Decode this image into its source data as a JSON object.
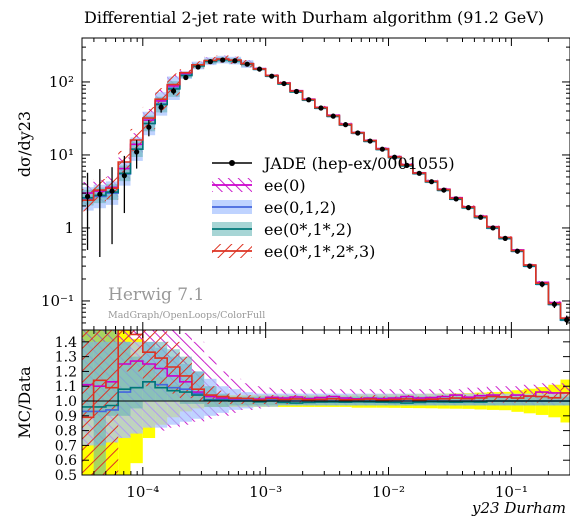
{
  "chart_data": [
    {
      "type": "line",
      "title": "Differential 2-jet rate with Durham algorithm (91.2 GeV)",
      "ylabel": "dσ/dy23",
      "xscale": "log",
      "yscale": "log",
      "xlim": [
        3.2e-05,
        0.3
      ],
      "ylim": [
        0.04,
        400
      ],
      "grid": false,
      "legend_position": "center-right",
      "x_tick_labels": [
        "10⁻⁴",
        "10⁻³",
        "10⁻²",
        "10⁻¹"
      ],
      "x_ticks": [
        0.0001,
        0.001,
        0.01,
        0.1
      ],
      "y_tick_labels": [
        "10⁻¹",
        "1",
        "10¹",
        "10²"
      ],
      "y_ticks": [
        0.1,
        1,
        10,
        100
      ],
      "watermark": {
        "title": "Herwig 7.1",
        "subtitle": "MadGraph/OpenLoops/ColorFull"
      },
      "bin_edges": [
        3.16e-05,
        3.98e-05,
        5.01e-05,
        6.31e-05,
        7.94e-05,
        0.0001,
        0.000126,
        0.000158,
        0.0002,
        0.000251,
        0.000316,
        0.000398,
        0.000501,
        0.000631,
        0.000794,
        0.001,
        0.00126,
        0.00158,
        0.002,
        0.00251,
        0.00316,
        0.00398,
        0.00501,
        0.00631,
        0.00794,
        0.01,
        0.0126,
        0.0158,
        0.02,
        0.0251,
        0.0316,
        0.0398,
        0.0501,
        0.0631,
        0.0794,
        0.1,
        0.126,
        0.158,
        0.2,
        0.251,
        0.316
      ],
      "data_x": [
        3.55e-05,
        4.47e-05,
        5.62e-05,
        7.08e-05,
        8.91e-05,
        0.000112,
        0.000141,
        0.000178,
        0.000224,
        0.000282,
        0.000355,
        0.000447,
        0.000562,
        0.000708,
        0.000891,
        0.00112,
        0.00141,
        0.00178,
        0.00224,
        0.00282,
        0.00355,
        0.00447,
        0.00562,
        0.00708,
        0.00891,
        0.0112,
        0.0141,
        0.0178,
        0.0224,
        0.0282,
        0.0355,
        0.0447,
        0.0562,
        0.0708,
        0.0891,
        0.112,
        0.141,
        0.178,
        0.224,
        0.282
      ],
      "series": [
        {
          "name": "JADE (hep-ex/0001055)",
          "color": "#000000",
          "style": "points",
          "values": [
            2.7,
            2.9,
            3.2,
            5.2,
            11,
            24,
            45,
            75,
            115,
            160,
            190,
            200,
            195,
            175,
            150,
            120,
            95,
            74,
            57,
            44,
            34,
            26,
            20,
            15.5,
            12,
            9.3,
            7.2,
            5.6,
            4.3,
            3.3,
            2.5,
            1.9,
            1.4,
            1.0,
            0.72,
            0.48,
            0.3,
            0.17,
            0.09,
            0.055
          ],
          "err_low": [
            2.2,
            2.5,
            2.6,
            3.6,
            4.5,
            6,
            7,
            8,
            8,
            8,
            8,
            8,
            8,
            7,
            6,
            5,
            4,
            3,
            2.4,
            1.9,
            1.5,
            1.2,
            0.9,
            0.7,
            0.55,
            0.43,
            0.34,
            0.27,
            0.21,
            0.17,
            0.13,
            0.1,
            0.08,
            0.06,
            0.045,
            0.035,
            0.025,
            0.016,
            0.01,
            0.008
          ],
          "err_high": [
            3.0,
            3.5,
            3.6,
            4.5,
            5,
            6,
            7,
            8,
            8,
            8,
            8,
            8,
            8,
            7,
            6,
            5,
            4,
            3,
            2.4,
            1.9,
            1.5,
            1.2,
            0.9,
            0.7,
            0.55,
            0.43,
            0.34,
            0.27,
            0.21,
            0.17,
            0.13,
            0.1,
            0.08,
            0.06,
            0.045,
            0.035,
            0.025,
            0.016,
            0.01,
            0.008
          ]
        },
        {
          "name": "ee(0)",
          "color": "#cc00cc",
          "fill": "hatch-magenta",
          "values": [
            3.0,
            3.2,
            3.6,
            6.5,
            14,
            30,
            55,
            88,
            130,
            170,
            195,
            205,
            198,
            178,
            152,
            123,
            97,
            76,
            58,
            45,
            35,
            26.5,
            20.3,
            15.8,
            12.2,
            9.5,
            7.4,
            5.7,
            4.4,
            3.4,
            2.6,
            1.95,
            1.45,
            1.04,
            0.74,
            0.5,
            0.31,
            0.18,
            0.095,
            0.058
          ]
        },
        {
          "name": "ee(0,1,2)",
          "color": "#5577ee",
          "fill": "band-lightblue",
          "values": [
            2.5,
            2.7,
            3.0,
            5.5,
            12,
            27,
            50,
            82,
            124,
            168,
            192,
            202,
            196,
            176,
            150,
            121,
            95,
            74,
            57,
            44,
            34,
            26,
            20,
            15.5,
            12,
            9.3,
            7.2,
            5.6,
            4.3,
            3.3,
            2.5,
            1.9,
            1.4,
            1.0,
            0.72,
            0.48,
            0.3,
            0.17,
            0.09,
            0.055
          ]
        },
        {
          "name": "ee(0*,1*,2)",
          "color": "#008080",
          "fill": "band-teal",
          "values": [
            2.6,
            2.8,
            3.1,
            5.6,
            12,
            27,
            49,
            80,
            122,
            166,
            191,
            201,
            195,
            175,
            149,
            120,
            94,
            73,
            56.5,
            43.7,
            33.8,
            25.8,
            19.9,
            15.4,
            11.9,
            9.2,
            7.1,
            5.55,
            4.28,
            3.28,
            2.48,
            1.89,
            1.39,
            1.0,
            0.72,
            0.48,
            0.3,
            0.17,
            0.09,
            0.055
          ]
        },
        {
          "name": "ee(0*,1*,2*,3)",
          "color": "#dd3322",
          "fill": "hatch-red",
          "values": [
            2.4,
            3.3,
            3.5,
            8.0,
            16,
            32,
            58,
            92,
            134,
            172,
            197,
            206,
            199,
            178,
            151,
            122,
            96,
            75,
            57.5,
            44.5,
            34.5,
            26.2,
            20.2,
            15.7,
            12.1,
            9.4,
            7.3,
            5.65,
            4.35,
            3.35,
            2.55,
            1.93,
            1.43,
            1.03,
            0.74,
            0.49,
            0.31,
            0.175,
            0.092,
            0.058
          ]
        }
      ]
    },
    {
      "type": "line",
      "ylabel": "MC/Data",
      "xlabel": "y23 Durham",
      "xscale": "log",
      "xlim": [
        3.2e-05,
        0.3
      ],
      "ylim": [
        0.5,
        1.48
      ],
      "y_tick_labels": [
        "0.5",
        "0.6",
        "0.7",
        "0.8",
        "0.9",
        "1.0",
        "1.1",
        "1.2",
        "1.3",
        "1.4"
      ],
      "y_ticks": [
        0.5,
        0.6,
        0.7,
        0.8,
        0.9,
        1.0,
        1.1,
        1.2,
        1.3,
        1.4
      ],
      "x_tick_labels": [
        "10⁻⁴",
        "10⁻³",
        "10⁻²",
        "10⁻¹"
      ],
      "x_ticks": [
        0.0001,
        0.001,
        0.01,
        0.1
      ],
      "data_band_color": "#ffff00",
      "data_band_low": [
        0.5,
        0.5,
        0.5,
        0.5,
        0.58,
        0.75,
        0.84,
        0.89,
        0.93,
        0.95,
        0.96,
        0.96,
        0.96,
        0.96,
        0.96,
        0.96,
        0.96,
        0.96,
        0.96,
        0.96,
        0.96,
        0.96,
        0.955,
        0.955,
        0.955,
        0.954,
        0.953,
        0.952,
        0.951,
        0.949,
        0.948,
        0.947,
        0.943,
        0.94,
        0.938,
        0.927,
        0.917,
        0.906,
        0.89,
        0.855
      ],
      "data_band_high": [
        1.48,
        1.48,
        1.48,
        1.48,
        1.42,
        1.25,
        1.16,
        1.11,
        1.07,
        1.05,
        1.04,
        1.04,
        1.04,
        1.04,
        1.04,
        1.04,
        1.04,
        1.04,
        1.04,
        1.04,
        1.04,
        1.04,
        1.045,
        1.045,
        1.045,
        1.046,
        1.047,
        1.048,
        1.049,
        1.051,
        1.052,
        1.053,
        1.057,
        1.06,
        1.062,
        1.073,
        1.083,
        1.094,
        1.11,
        1.145
      ],
      "ratios": [
        {
          "name": "ee(0)",
          "values": [
            1.11,
            1.1,
            1.13,
            1.25,
            1.27,
            1.25,
            1.22,
            1.17,
            1.13,
            1.06,
            1.03,
            1.02,
            1.015,
            1.017,
            1.013,
            1.025,
            1.02,
            1.027,
            1.017,
            1.023,
            1.03,
            1.02,
            1.015,
            1.02,
            1.017,
            1.02,
            1.03,
            1.02,
            1.023,
            1.03,
            1.04,
            1.026,
            1.036,
            1.04,
            1.028,
            1.04,
            1.033,
            1.06,
            1.055,
            1.055
          ],
          "band_low": [
            0.7,
            0.7,
            0.72,
            0.75,
            0.78,
            0.82,
            0.8,
            0.82,
            0.84,
            0.86,
            0.88,
            0.9,
            0.92,
            0.94,
            0.95,
            0.96,
            0.97,
            0.97,
            0.97,
            0.97,
            0.97,
            0.97,
            0.97,
            0.97,
            0.97,
            0.97,
            0.97,
            0.97,
            0.97,
            0.97,
            0.97,
            0.97,
            0.97,
            0.97,
            0.97,
            0.97,
            0.97,
            0.97,
            0.97,
            0.97
          ],
          "band_high": [
            1.48,
            1.48,
            1.48,
            1.48,
            1.48,
            1.48,
            1.48,
            1.48,
            1.46,
            1.4,
            1.3,
            1.2,
            1.15,
            1.12,
            1.1,
            1.09,
            1.08,
            1.08,
            1.08,
            1.08,
            1.08,
            1.08,
            1.08,
            1.08,
            1.08,
            1.08,
            1.08,
            1.08,
            1.08,
            1.08,
            1.08,
            1.09,
            1.09,
            1.1,
            1.1,
            1.1,
            1.11,
            1.12,
            1.12,
            1.12
          ]
        },
        {
          "name": "ee(0,1,2)",
          "values": [
            0.93,
            0.93,
            0.94,
            1.06,
            1.09,
            1.13,
            1.11,
            1.09,
            1.08,
            1.05,
            1.01,
            1.01,
            1.005,
            1.006,
            1.0,
            1.008,
            1.0,
            1.0,
            1.0,
            1.0,
            1.0,
            1.0,
            1.0,
            1.0,
            1.0,
            1.0,
            1.0,
            1.0,
            1.0,
            1.0,
            1.0,
            1.0,
            1.0,
            1.0,
            1.0,
            1.0,
            1.0,
            1.0,
            1.0,
            1.0
          ],
          "band_low": [
            0.7,
            0.7,
            0.72,
            0.75,
            0.78,
            0.82,
            0.82,
            0.84,
            0.86,
            0.88,
            0.9,
            0.92,
            0.94,
            0.95,
            0.96,
            0.96,
            0.97,
            0.97,
            0.97,
            0.97,
            0.97,
            0.97,
            0.97,
            0.97,
            0.97,
            0.97,
            0.97,
            0.97,
            0.97,
            0.97,
            0.97,
            0.97,
            0.97,
            0.97,
            0.97,
            0.97,
            0.97,
            0.97,
            0.97,
            0.97
          ],
          "band_high": [
            1.4,
            1.4,
            1.4,
            1.4,
            1.4,
            1.4,
            1.36,
            1.3,
            1.25,
            1.2,
            1.15,
            1.1,
            1.08,
            1.06,
            1.05,
            1.05,
            1.05,
            1.05,
            1.05,
            1.05,
            1.05,
            1.05,
            1.05,
            1.05,
            1.05,
            1.05,
            1.05,
            1.05,
            1.05,
            1.05,
            1.05,
            1.05,
            1.05,
            1.05,
            1.05,
            1.05,
            1.05,
            1.05,
            1.05,
            1.05
          ]
        },
        {
          "name": "ee(0*,1*,2)",
          "values": [
            0.96,
            0.96,
            0.97,
            1.08,
            1.09,
            1.13,
            1.09,
            1.07,
            1.06,
            1.04,
            1.005,
            1.005,
            1.0,
            1.0,
            0.995,
            1.0,
            0.99,
            0.986,
            0.99,
            0.993,
            0.994,
            0.992,
            0.995,
            0.994,
            0.992,
            0.99,
            0.986,
            0.991,
            0.995,
            0.994,
            0.992,
            0.995,
            0.993,
            1.0,
            1.0,
            1.0,
            1.0,
            1.0,
            1.0,
            1.0
          ],
          "band_low": [
            0.9,
            0.5,
            0.9,
            0.9,
            0.95,
            1.0,
            1.0,
            1.0,
            0.98,
            0.98,
            0.96,
            0.96,
            0.97,
            0.97,
            0.97,
            0.97,
            0.97,
            0.97,
            0.97,
            0.97,
            0.97,
            0.97,
            0.97,
            0.97,
            0.97,
            0.97,
            0.97,
            0.97,
            0.97,
            0.97,
            0.97,
            0.97,
            0.97,
            0.97,
            0.97,
            0.97,
            0.97,
            0.97,
            0.97,
            0.97
          ],
          "band_high": [
            1.48,
            1.48,
            1.48,
            1.4,
            1.3,
            1.4,
            1.4,
            1.35,
            1.3,
            1.2,
            1.1,
            1.05,
            1.03,
            1.03,
            1.03,
            1.03,
            1.03,
            1.03,
            1.03,
            1.03,
            1.03,
            1.03,
            1.03,
            1.03,
            1.03,
            1.03,
            1.03,
            1.03,
            1.03,
            1.03,
            1.03,
            1.03,
            1.03,
            1.03,
            1.03,
            1.03,
            1.03,
            1.03,
            1.03,
            1.03
          ]
        },
        {
          "name": "ee(0*,1*,2*,3)",
          "values": [
            0.89,
            1.14,
            1.09,
            1.54,
            1.45,
            1.33,
            1.29,
            1.23,
            1.17,
            1.08,
            1.04,
            1.03,
            1.02,
            1.017,
            1.007,
            1.017,
            1.01,
            1.014,
            1.009,
            1.011,
            1.015,
            1.008,
            1.01,
            1.013,
            1.008,
            1.011,
            1.014,
            1.009,
            1.012,
            1.015,
            1.02,
            1.016,
            1.021,
            1.03,
            1.028,
            1.02,
            1.033,
            1.03,
            1.022,
            1.055
          ],
          "band_low": [
            0.5,
            0.5,
            0.5,
            1.2,
            1.2,
            1.1,
            1.1,
            1.05,
            1.02,
            1.0,
            0.98,
            0.98,
            0.98,
            0.98,
            0.98,
            0.98,
            0.98,
            0.99,
            0.99,
            0.99,
            0.99,
            0.99,
            0.99,
            0.99,
            0.99,
            0.99,
            0.99,
            0.99,
            0.99,
            0.99,
            0.99,
            0.99,
            0.99,
            0.99,
            0.99,
            0.99,
            0.99,
            0.99,
            0.99,
            0.99
          ],
          "band_high": [
            1.48,
            1.48,
            1.48,
            1.48,
            1.48,
            1.48,
            1.48,
            1.4,
            1.3,
            1.2,
            1.1,
            1.07,
            1.05,
            1.04,
            1.03,
            1.04,
            1.03,
            1.04,
            1.03,
            1.03,
            1.04,
            1.03,
            1.03,
            1.04,
            1.03,
            1.03,
            1.04,
            1.03,
            1.03,
            1.04,
            1.05,
            1.04,
            1.05,
            1.06,
            1.06,
            1.05,
            1.07,
            1.06,
            1.05,
            1.1
          ]
        }
      ]
    }
  ]
}
